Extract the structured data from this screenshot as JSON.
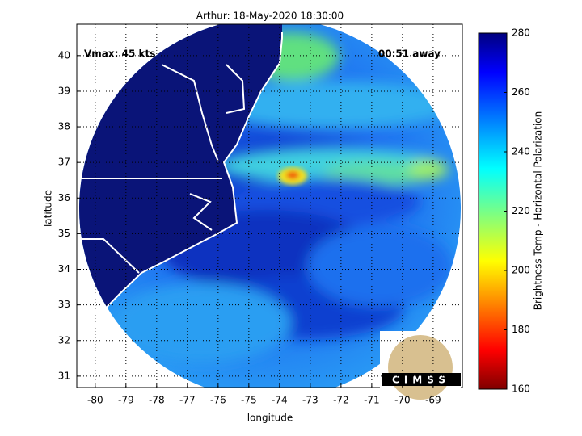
{
  "chart_data": {
    "type": "map",
    "title": "Arthur: 18-May-2020 18:30:00",
    "xlabel": "longitude",
    "ylabel": "latitude",
    "xlim": [
      -80.6,
      -68.05
    ],
    "ylim": [
      30.68,
      40.88
    ],
    "xticks": [
      -80,
      -79,
      -78,
      -77,
      -76,
      -75,
      -74,
      -73,
      -72,
      -71,
      -70,
      -69
    ],
    "yticks": [
      31,
      32,
      33,
      34,
      35,
      36,
      37,
      38,
      39,
      40
    ],
    "grid": true,
    "annotations": [
      "Vmax: 45 kts",
      "00:51 away"
    ],
    "logo": "CIMSS",
    "colorbar": {
      "label": "Brightness Temp - Horizontal Polarization",
      "colormap": "jet",
      "lim": [
        160,
        280
      ],
      "ticks": [
        160,
        180,
        200,
        220,
        240,
        260,
        280
      ]
    }
  }
}
